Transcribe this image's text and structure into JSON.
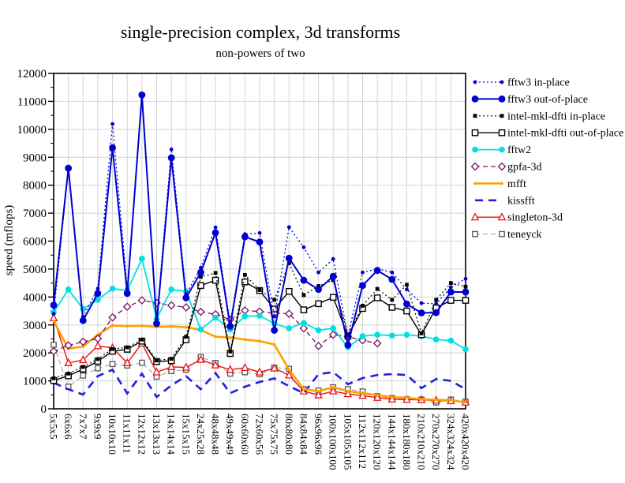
{
  "page": {
    "background": "#ffffff"
  },
  "chart": {
    "title": "single-precision complex, 3d transforms",
    "subtitle": "non-powers of two",
    "ylabel": "speed (mflops)"
  },
  "chart_data": {
    "type": "line",
    "title": "single-precision complex, 3d transforms",
    "subtitle": "non-powers of two",
    "xlabel": "",
    "ylabel": "speed (mflops)",
    "ylim": [
      0,
      12000
    ],
    "ytick_step": 1000,
    "ytick_minor_step": 500,
    "grid": true,
    "legend_position": "right",
    "plot_border_color": "#000000",
    "grid_color": "#d4d4d4",
    "categories": [
      "5x5x5",
      "6x6x6",
      "7x7x7",
      "9x9x9",
      "10x10x10",
      "11x11x11",
      "12x12x12",
      "13x13x13",
      "14x14x14",
      "15x15x15",
      "24x25x28",
      "48x48x48",
      "49x49x49",
      "60x60x60",
      "72x60x56",
      "75x75x75",
      "80x80x80",
      "84x84x84",
      "96x96x96",
      "100x100x100",
      "105x105x105",
      "112x112x112",
      "120x120x120",
      "144x144x144",
      "180x180x180",
      "210x210x210",
      "270x270x270",
      "324x324x324",
      "420x420x420"
    ],
    "series": [
      {
        "name": "fftw3 in-place",
        "color": "#0000d0",
        "line": "dotted",
        "width": 1.3,
        "marker": "circle-small",
        "values": [
          3400,
          8560,
          3300,
          4300,
          10190,
          4300,
          11160,
          3190,
          9280,
          4100,
          5050,
          6490,
          3050,
          6250,
          6290,
          3300,
          6500,
          5780,
          4880,
          5360,
          2600,
          4880,
          5010,
          4880,
          4270,
          3780,
          3760,
          4350,
          4650
        ]
      },
      {
        "name": "fftw3 out-of-place",
        "color": "#0000d0",
        "line": "solid",
        "width": 2.0,
        "marker": "circle-large",
        "values": [
          3710,
          8610,
          3160,
          4130,
          9340,
          4130,
          11230,
          3050,
          8980,
          3970,
          4880,
          6300,
          2950,
          6150,
          5970,
          2810,
          5390,
          4600,
          4270,
          4740,
          2280,
          4410,
          4950,
          4630,
          3750,
          3430,
          3440,
          4180,
          4180
        ]
      },
      {
        "name": "intel-mkl-dfti in-place",
        "color": "#000000",
        "line": "dotted",
        "width": 1.2,
        "marker": "square-filled",
        "values": [
          1090,
          1260,
          1500,
          1780,
          2140,
          2200,
          2480,
          1730,
          1790,
          2580,
          4720,
          4860,
          2050,
          4790,
          4250,
          3900,
          5210,
          4070,
          4390,
          4600,
          2650,
          3690,
          4290,
          3900,
          4440,
          2700,
          3900,
          4500,
          4370
        ]
      },
      {
        "name": "intel-mkl-dfti out-of-place",
        "color": "#000000",
        "line": "solid",
        "width": 1.4,
        "marker": "square-open",
        "values": [
          1010,
          1180,
          1420,
          1700,
          2060,
          2130,
          2420,
          1690,
          1720,
          2470,
          4410,
          4600,
          1980,
          4540,
          4230,
          3570,
          4200,
          3540,
          3760,
          3990,
          2600,
          3590,
          3970,
          3630,
          3500,
          2650,
          3610,
          3880,
          3880
        ]
      },
      {
        "name": "fftw2",
        "color": "#00e0e0",
        "line": "solid",
        "width": 1.8,
        "marker": "circle-med",
        "values": [
          3450,
          4270,
          3570,
          3900,
          4300,
          4230,
          5370,
          3220,
          4270,
          4200,
          2840,
          3260,
          2840,
          3310,
          3330,
          3050,
          2880,
          3070,
          2810,
          2880,
          2200,
          2600,
          2650,
          2620,
          2650,
          2600,
          2480,
          2440,
          2130
        ]
      },
      {
        "name": "gpfa-3d",
        "color": "#7a0f63",
        "line": "dashed",
        "width": 1.3,
        "marker": "diamond-open",
        "values": [
          2060,
          2270,
          2400,
          2510,
          3270,
          3650,
          3880,
          3790,
          3700,
          3630,
          3470,
          3380,
          3190,
          3520,
          3480,
          3420,
          3400,
          2880,
          2250,
          2650,
          2580,
          2450,
          2340,
          null,
          null,
          null,
          null,
          null,
          null
        ]
      },
      {
        "name": "mfft",
        "color": "#ffa000",
        "line": "solid",
        "width": 2.6,
        "marker": "dot",
        "values": [
          3140,
          2150,
          2230,
          2650,
          2980,
          2960,
          2970,
          2930,
          2950,
          2920,
          2820,
          2580,
          2550,
          2480,
          2420,
          2300,
          1400,
          700,
          630,
          770,
          630,
          560,
          490,
          415,
          400,
          340,
          325,
          310,
          230
        ]
      },
      {
        "name": "kissfft",
        "color": "#2020dd",
        "line": "longdash",
        "width": 2.6,
        "marker": "none",
        "values": [
          930,
          700,
          510,
          1170,
          1400,
          550,
          1260,
          420,
          840,
          1170,
          700,
          1280,
          560,
          790,
          960,
          1090,
          810,
          560,
          1240,
          1310,
          880,
          1100,
          1210,
          1240,
          1210,
          740,
          1070,
          1000,
          700
        ]
      },
      {
        "name": "singleton-3d",
        "color": "#e81010",
        "line": "solid",
        "width": 1.4,
        "marker": "triangle-open",
        "values": [
          3250,
          1640,
          1750,
          2250,
          2180,
          1640,
          2340,
          1310,
          1500,
          1480,
          1760,
          1560,
          1400,
          1470,
          1310,
          1450,
          1200,
          630,
          490,
          630,
          530,
          470,
          400,
          340,
          330,
          320,
          300,
          280,
          230
        ]
      },
      {
        "name": "teneyck",
        "color": "#b0b0b0",
        "marker_color": "#555555",
        "line": "dashed",
        "width": 1.3,
        "marker": "square-open-small",
        "values": [
          2290,
          790,
          1190,
          1450,
          1600,
          1550,
          1650,
          1150,
          1350,
          1400,
          1850,
          1640,
          1260,
          1310,
          1240,
          1470,
          1430,
          700,
          650,
          770,
          700,
          620,
          450,
          380,
          340,
          330,
          230,
          330,
          260
        ]
      }
    ]
  }
}
